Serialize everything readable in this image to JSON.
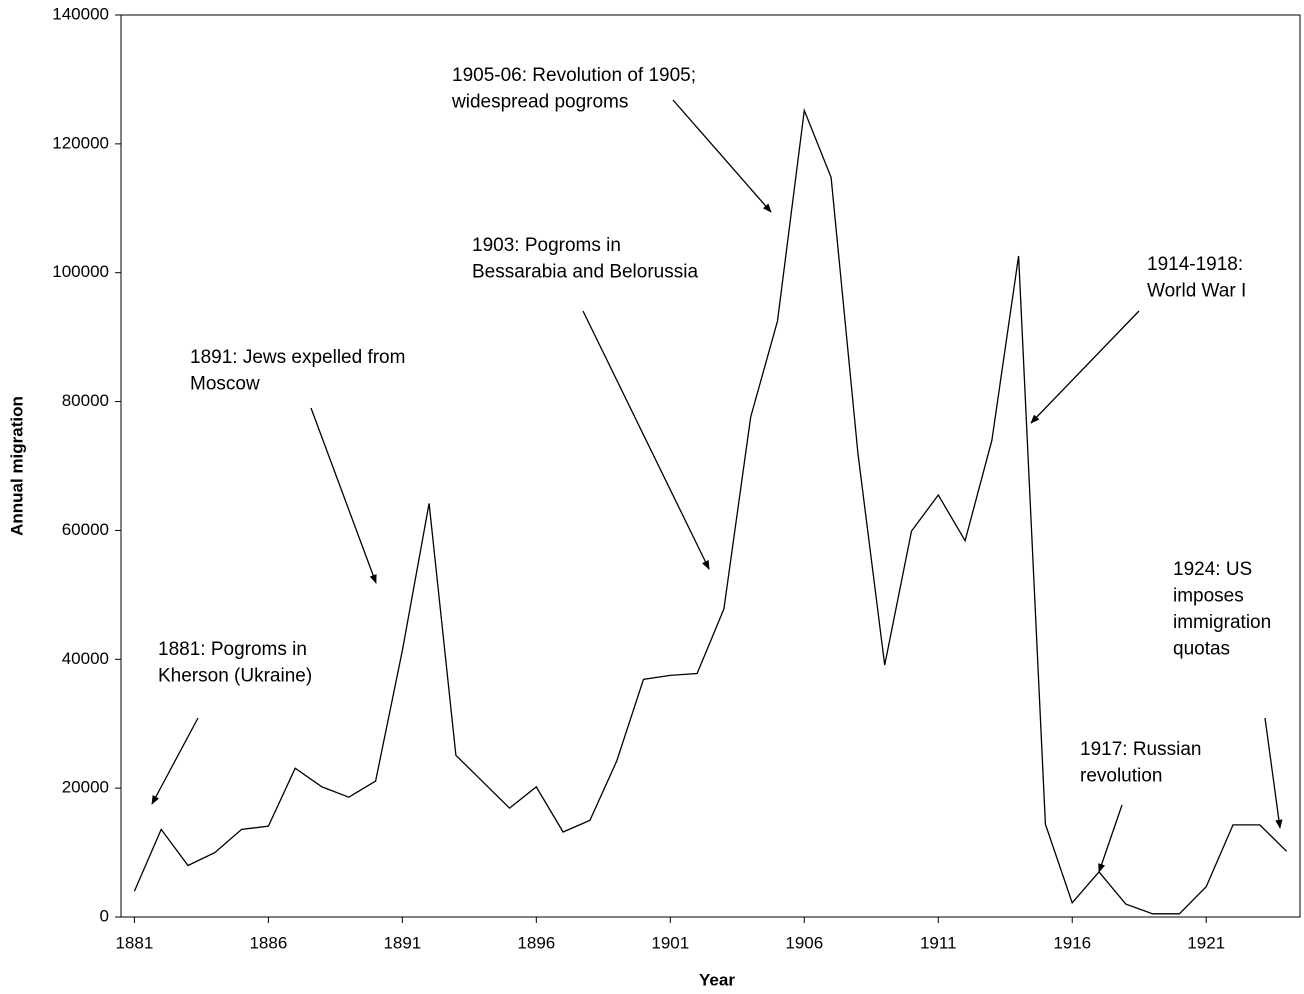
{
  "chart_data": {
    "type": "line",
    "x_label": "Year",
    "y_label": "Annual migration",
    "x": [
      1881,
      1882,
      1883,
      1884,
      1885,
      1886,
      1887,
      1888,
      1889,
      1890,
      1891,
      1892,
      1893,
      1894,
      1895,
      1896,
      1897,
      1898,
      1899,
      1900,
      1901,
      1902,
      1903,
      1904,
      1905,
      1906,
      1907,
      1908,
      1909,
      1910,
      1911,
      1912,
      1913,
      1914,
      1915,
      1916,
      1917,
      1918,
      1919,
      1920,
      1921,
      1922,
      1923,
      1924
    ],
    "values": [
      4000,
      13600,
      8000,
      10000,
      13600,
      14100,
      23100,
      20200,
      18600,
      21100,
      41400,
      64200,
      25100,
      21000,
      16900,
      20200,
      13200,
      15000,
      24200,
      36900,
      37500,
      37800,
      47800,
      77600,
      92500,
      125200,
      114800,
      72000,
      39100,
      59900,
      65500,
      58400,
      74000,
      102600,
      14400,
      2200,
      7000,
      2000,
      500,
      500,
      4700,
      14300,
      14300,
      10200
    ],
    "color": "#000000",
    "xlim": [
      1880.5,
      1924.5
    ],
    "xticks": [
      1881,
      1886,
      1891,
      1896,
      1901,
      1906,
      1911,
      1916,
      1921
    ],
    "ylim": [
      0,
      140000
    ],
    "yticks": [
      0,
      20000,
      40000,
      60000,
      80000,
      100000,
      120000,
      140000
    ],
    "annotations": [
      [
        "1881: Pogroms in",
        "Kherson (Ukraine)"
      ],
      [
        "1891: Jews expelled from",
        "Moscow"
      ],
      [
        "1903: Pogroms in",
        "Bessarabia and Belorussia"
      ],
      [
        "1905-06: Revolution of 1905;",
        "widespread pogroms"
      ],
      [
        "1914-1918:",
        "World War I"
      ],
      [
        "1917: Russian",
        "revolution"
      ],
      [
        "1924: US",
        "imposes",
        "immigration",
        "quotas"
      ]
    ]
  }
}
